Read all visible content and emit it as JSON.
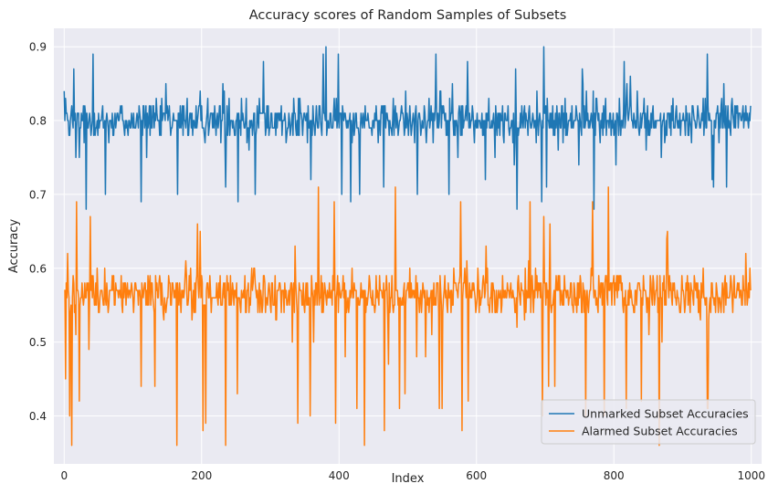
{
  "chart_data": {
    "type": "line",
    "title": "Accuracy scores of Random Samples of Subsets",
    "xlabel": "Index",
    "ylabel": "Accuracy",
    "xlim": [
      -15,
      1015
    ],
    "ylim": [
      0.335,
      0.925
    ],
    "xticks": [
      0,
      200,
      400,
      600,
      800,
      1000
    ],
    "yticks": [
      0.4,
      0.5,
      0.6,
      0.7,
      0.8,
      0.9
    ],
    "grid": true,
    "legend_position": "bottom-right",
    "series": [
      {
        "name": "Unmarked Subset Accuracies",
        "color": "#1f77b4",
        "n_points": 1000,
        "value_range": [
          0.68,
          0.9
        ],
        "typical_band": [
          0.76,
          0.84
        ],
        "anchor_points": [
          {
            "x": 0,
            "y": 0.84
          },
          {
            "x": 2,
            "y": 0.83
          },
          {
            "x": 5,
            "y": 0.8
          },
          {
            "x": 8,
            "y": 0.78
          },
          {
            "x": 14,
            "y": 0.87
          },
          {
            "x": 17,
            "y": 0.75
          },
          {
            "x": 22,
            "y": 0.75
          },
          {
            "x": 32,
            "y": 0.68
          },
          {
            "x": 42,
            "y": 0.89
          },
          {
            "x": 60,
            "y": 0.7
          },
          {
            "x": 112,
            "y": 0.69
          },
          {
            "x": 165,
            "y": 0.7
          },
          {
            "x": 278,
            "y": 0.7
          },
          {
            "x": 377,
            "y": 0.89
          },
          {
            "x": 381,
            "y": 0.9
          },
          {
            "x": 465,
            "y": 0.71
          },
          {
            "x": 695,
            "y": 0.69
          },
          {
            "x": 698,
            "y": 0.9
          },
          {
            "x": 999,
            "y": 0.82
          }
        ]
      },
      {
        "name": "Alarmed Subset Accuracies",
        "color": "#ff7f0e",
        "n_points": 1000,
        "value_range": [
          0.36,
          0.71
        ],
        "typical_band": [
          0.52,
          0.61
        ],
        "anchor_points": [
          {
            "x": 0,
            "y": 0.57
          },
          {
            "x": 2,
            "y": 0.45
          },
          {
            "x": 5,
            "y": 0.62
          },
          {
            "x": 8,
            "y": 0.4
          },
          {
            "x": 11,
            "y": 0.36
          },
          {
            "x": 18,
            "y": 0.69
          },
          {
            "x": 22,
            "y": 0.42
          },
          {
            "x": 112,
            "y": 0.44
          },
          {
            "x": 252,
            "y": 0.43
          },
          {
            "x": 393,
            "y": 0.69
          },
          {
            "x": 482,
            "y": 0.71
          },
          {
            "x": 588,
            "y": 0.42
          },
          {
            "x": 792,
            "y": 0.71
          },
          {
            "x": 840,
            "y": 0.42
          },
          {
            "x": 999,
            "y": 0.57
          }
        ]
      }
    ]
  }
}
